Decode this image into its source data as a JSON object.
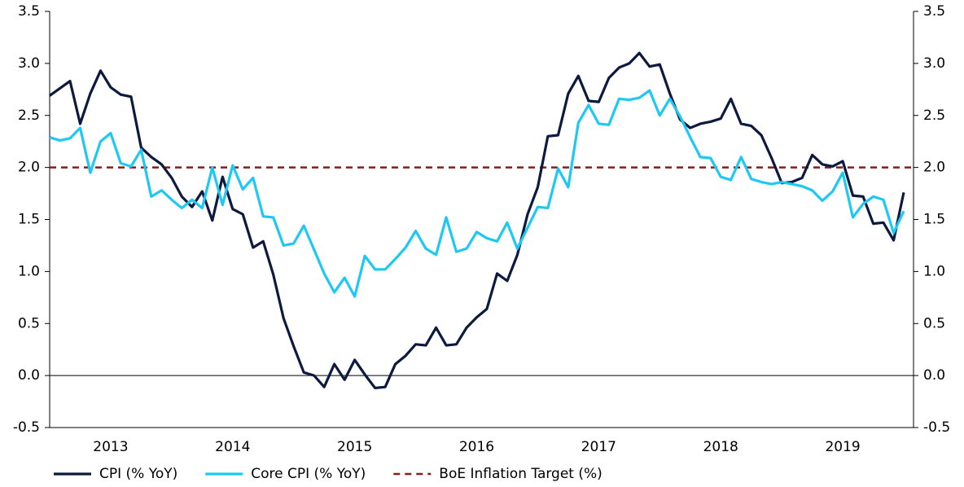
{
  "chart_data": {
    "type": "line",
    "x": [
      2013,
      2013.083,
      2013.167,
      2013.25,
      2013.333,
      2013.417,
      2013.5,
      2013.583,
      2013.667,
      2013.75,
      2013.833,
      2013.917,
      2014,
      2014.083,
      2014.167,
      2014.25,
      2014.333,
      2014.417,
      2014.5,
      2014.583,
      2014.667,
      2014.75,
      2014.833,
      2014.917,
      2015,
      2015.083,
      2015.167,
      2015.25,
      2015.333,
      2015.417,
      2015.5,
      2015.583,
      2015.667,
      2015.75,
      2015.833,
      2015.917,
      2016,
      2016.083,
      2016.167,
      2016.25,
      2016.333,
      2016.417,
      2016.5,
      2016.583,
      2016.667,
      2016.75,
      2016.833,
      2016.917,
      2017,
      2017.083,
      2017.167,
      2017.25,
      2017.333,
      2017.417,
      2017.5,
      2017.583,
      2017.667,
      2017.75,
      2017.833,
      2017.917,
      2018,
      2018.083,
      2018.167,
      2018.25,
      2018.333,
      2018.417,
      2018.5,
      2018.583,
      2018.667,
      2018.75,
      2018.833,
      2018.917,
      2019,
      2019.083,
      2019.167,
      2019.25,
      2019.333,
      2019.417,
      2019.5,
      2019.583,
      2019.667,
      2019.75,
      2019.833,
      2019.917,
      2020
    ],
    "series": [
      {
        "name": "CPI (% YoY)",
        "color": "#0d1a3f",
        "values": [
          2.69,
          2.76,
          2.83,
          2.42,
          2.71,
          2.93,
          2.77,
          2.7,
          2.68,
          2.19,
          2.1,
          2.03,
          1.9,
          1.72,
          1.62,
          1.77,
          1.49,
          1.91,
          1.6,
          1.55,
          1.23,
          1.29,
          0.97,
          0.55,
          0.28,
          0.03,
          0.0,
          -0.11,
          0.11,
          -0.04,
          0.15,
          0.01,
          -0.12,
          -0.11,
          0.11,
          0.19,
          0.3,
          0.29,
          0.46,
          0.29,
          0.3,
          0.46,
          0.56,
          0.64,
          0.98,
          0.91,
          1.16,
          1.55,
          1.81,
          2.3,
          2.31,
          2.71,
          2.88,
          2.64,
          2.63,
          2.86,
          2.96,
          3.0,
          3.1,
          2.97,
          2.99,
          2.71,
          2.46,
          2.38,
          2.42,
          2.44,
          2.47,
          2.66,
          2.42,
          2.4,
          2.31,
          2.09,
          1.85,
          1.86,
          1.9,
          2.12,
          2.03,
          2.01,
          2.06,
          1.73,
          1.72,
          1.46,
          1.47,
          1.3,
          1.76
        ]
      },
      {
        "name": "Core CPI (% YoY)",
        "color": "#1ec8f5",
        "values": [
          2.29,
          2.26,
          2.28,
          2.38,
          1.95,
          2.25,
          2.33,
          2.04,
          2.01,
          2.17,
          1.72,
          1.78,
          1.69,
          1.61,
          1.69,
          1.61,
          2.0,
          1.64,
          2.02,
          1.79,
          1.9,
          1.53,
          1.52,
          1.25,
          1.27,
          1.44,
          1.21,
          0.98,
          0.8,
          0.94,
          0.76,
          1.15,
          1.02,
          1.02,
          1.12,
          1.23,
          1.39,
          1.22,
          1.16,
          1.52,
          1.19,
          1.22,
          1.38,
          1.32,
          1.29,
          1.47,
          1.22,
          1.42,
          1.62,
          1.61,
          1.99,
          1.81,
          2.43,
          2.6,
          2.42,
          2.41,
          2.66,
          2.65,
          2.67,
          2.74,
          2.5,
          2.66,
          2.49,
          2.29,
          2.1,
          2.09,
          1.91,
          1.88,
          2.1,
          1.89,
          1.86,
          1.84,
          1.86,
          1.84,
          1.82,
          1.78,
          1.68,
          1.77,
          1.95,
          1.52,
          1.65,
          1.72,
          1.69,
          1.37,
          1.58
        ]
      }
    ],
    "reference_lines": [
      {
        "name": "BoE Inflation Target (%)",
        "value": 2.0,
        "color": "#8b1a1a",
        "dashed": true
      }
    ],
    "xlim": [
      2013,
      2020.08
    ],
    "xticks": [
      {
        "value": 2013.5,
        "label": "2013"
      },
      {
        "value": 2014.5,
        "label": "2014"
      },
      {
        "value": 2015.5,
        "label": "2015"
      },
      {
        "value": 2016.5,
        "label": "2016"
      },
      {
        "value": 2017.5,
        "label": "2017"
      },
      {
        "value": 2018.5,
        "label": "2018"
      },
      {
        "value": 2019.5,
        "label": "2019"
      }
    ],
    "ylim": [
      -0.5,
      3.5
    ],
    "yticks": [
      -0.5,
      {
        "value": 0,
        "label": "0.0"
      },
      0.5,
      {
        "value": 1,
        "label": "1.0"
      },
      1.5,
      {
        "value": 2,
        "label": "2.0"
      },
      2.5,
      {
        "value": 3,
        "label": "3.0"
      },
      3.5
    ],
    "y2lim": [
      -0.5,
      3.5
    ],
    "y2ticks": [
      -0.5,
      {
        "value": 0,
        "label": "0.0"
      },
      0.5,
      {
        "value": 1,
        "label": "1.0"
      },
      1.5,
      {
        "value": 2,
        "label": "2.0"
      },
      2.5,
      {
        "value": 3,
        "label": "3.0"
      },
      3.5
    ],
    "legend": "bottom"
  }
}
